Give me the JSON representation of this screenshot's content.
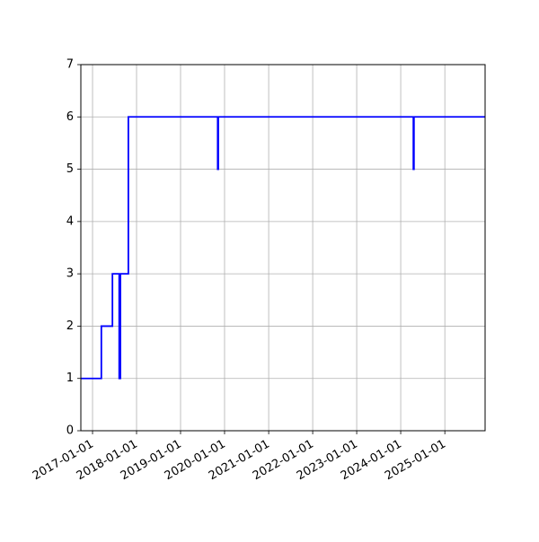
{
  "chart_data": {
    "type": "line",
    "title": "",
    "xlabel": "",
    "ylabel": "",
    "x_axis_kind": "date",
    "xlim": [
      "2016-09-26",
      "2025-12-01"
    ],
    "ylim": [
      0,
      7
    ],
    "grid": true,
    "legend": "none",
    "line_color": "#0000ff",
    "grid_color": "#b0b0b0",
    "x_tick_labels": [
      "2017-01-01",
      "2018-01-01",
      "2019-01-01",
      "2020-01-01",
      "2021-01-01",
      "2022-01-01",
      "2023-01-01",
      "2024-01-01",
      "2025-01-01"
    ],
    "y_tick_labels": [
      "0",
      "1",
      "2",
      "3",
      "4",
      "5",
      "6",
      "7"
    ],
    "series": [
      {
        "step": "post",
        "x": [
          "2016-09-26",
          "2017-03-15",
          "2017-06-15",
          "2017-08-10",
          "2017-08-20",
          "2017-10-25",
          "2019-11-05",
          "2019-11-10",
          "2024-04-15",
          "2024-04-20",
          "2025-12-01"
        ],
        "values": [
          1,
          2,
          3,
          1,
          3,
          6,
          5,
          6,
          5,
          6,
          6
        ]
      }
    ]
  }
}
